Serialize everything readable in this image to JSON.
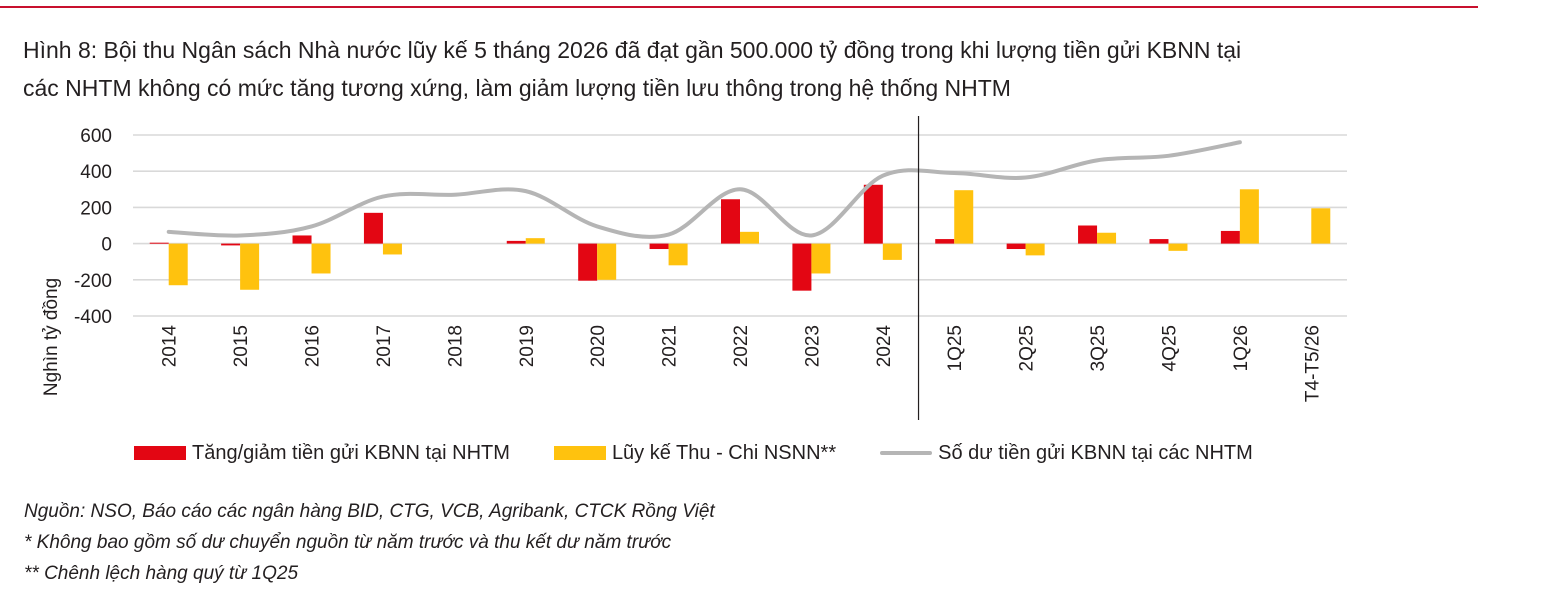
{
  "title_lines": [
    "Hình 8: Bội thu Ngân sách Nhà nước lũy kế 5 tháng 2026 đã đạt gần 500.000 tỷ đồng trong khi lượng tiền gửi KBNN tại",
    "các NHTM không có mức tăng tương xứng, làm giảm lượng tiền lưu thông trong hệ thống NHTM"
  ],
  "colors": {
    "rule": "#c8102e",
    "deposit_change": "#e30613",
    "budget_balance": "#ffc20e",
    "deposit_balance": "#b5b5b5",
    "grid": "#d9d9d9"
  },
  "chart_data": {
    "type": "bar",
    "ylabel": "Nghìn tỷ đồng",
    "ylim": [
      -400,
      600
    ],
    "yticks": [
      "600",
      "400",
      "200",
      "0",
      "-200",
      "-400"
    ],
    "categories": [
      "2014",
      "2015",
      "2016",
      "2017",
      "2018",
      "2019",
      "2020",
      "2021",
      "2022",
      "2023",
      "2024",
      "1Q25",
      "2Q25",
      "3Q25",
      "4Q25",
      "1Q26",
      "T4-T5/26"
    ],
    "separator_after": "2024",
    "grid": true,
    "legend_position": "bottom",
    "series": [
      {
        "name": "Tăng/giảm tiền gửi KBNN tại NHTM",
        "kind": "bar",
        "values": [
          5,
          -10,
          45,
          170,
          null,
          15,
          -205,
          -30,
          245,
          -260,
          325,
          25,
          -30,
          100,
          25,
          70,
          null
        ]
      },
      {
        "name": "Lũy kế Thu - Chi NSNN**",
        "kind": "bar",
        "values": [
          -230,
          -255,
          -165,
          -60,
          null,
          30,
          -200,
          -120,
          65,
          -165,
          -90,
          295,
          -65,
          60,
          -40,
          300,
          195
        ]
      },
      {
        "name": "Số dư tiền gửi KBNN tại các NHTM",
        "kind": "line",
        "values": [
          65,
          45,
          95,
          260,
          270,
          290,
          95,
          50,
          300,
          45,
          375,
          390,
          365,
          460,
          485,
          560,
          null
        ]
      }
    ]
  },
  "notes": [
    "Nguồn: NSO, Báo cáo các ngân hàng BID, CTG, VCB, Agribank, CTCK Rồng Việt",
    "* Không bao gồm số dư chuyển nguồn từ năm trước và thu kết dư năm trước",
    "** Chênh lệch hàng quý từ 1Q25"
  ]
}
